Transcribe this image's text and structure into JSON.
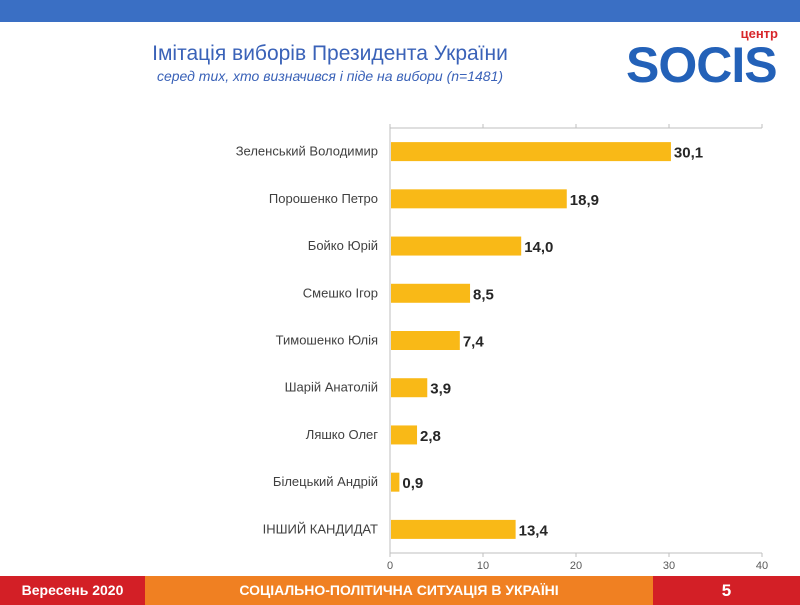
{
  "header": {
    "title": "Імітація виборів Президента України",
    "subtitle": "серед тих, хто визначився і піде на вибори (n=1481)"
  },
  "logo": {
    "superscript": "центр",
    "name": "SOCIS"
  },
  "footer": {
    "date": "Вересень 2020",
    "section": "СОЦІАЛЬНО-ПОЛІТИЧНА СИТУАЦІЯ В УКРАЇНІ",
    "page": "5"
  },
  "colors": {
    "bar": "#f9b917",
    "title": "#3a62b8",
    "brand_blue": "#2361b8",
    "brand_red": "#d31f26",
    "brand_orange": "#f08022"
  },
  "chart_data": {
    "type": "bar",
    "orientation": "horizontal",
    "categories": [
      "Зеленський Володимир",
      "Порошенко Петро",
      "Бойко Юрій",
      "Смешко Ігор",
      "Тимошенко Юлія",
      "Шарій Анатолій",
      "Ляшко Олег",
      "Білецький Андрій",
      "ІНШИЙ КАНДИДАТ"
    ],
    "values": [
      30.1,
      18.9,
      14.0,
      8.5,
      7.4,
      3.9,
      2.8,
      0.9,
      13.4
    ],
    "value_labels": [
      "30,1",
      "18,9",
      "14,0",
      "8,5",
      "7,4",
      "3,9",
      "2,8",
      "0,9",
      "13,4"
    ],
    "xlim": [
      0,
      40
    ],
    "xticks": [
      0,
      10,
      20,
      30,
      40
    ],
    "axis_position": "top-and-bottom",
    "grid": false,
    "legend": "none"
  }
}
